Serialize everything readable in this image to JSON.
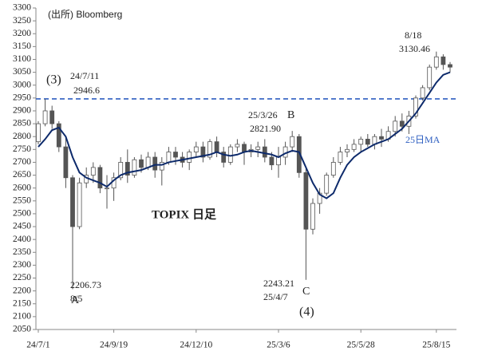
{
  "chart_data": {
    "type": "candlestick",
    "categories": [
      "24/7/1",
      null,
      null,
      null,
      null,
      null,
      null,
      null,
      null,
      null,
      null,
      "24/9/19",
      null,
      null,
      null,
      null,
      null,
      null,
      null,
      null,
      null,
      null,
      null,
      "24/12/10",
      null,
      null,
      null,
      null,
      null,
      null,
      null,
      null,
      null,
      null,
      null,
      "25/3/6",
      null,
      null,
      null,
      null,
      null,
      null,
      null,
      null,
      null,
      null,
      null,
      "25/5/28",
      null,
      null,
      null,
      null,
      null,
      null,
      null,
      null,
      null,
      null,
      "25/8/15",
      null,
      null
    ],
    "open": [
      2780,
      2850,
      2900,
      2850,
      2760,
      2640,
      2450,
      2620,
      2650,
      2680,
      2600,
      2600,
      2640,
      2700,
      2650,
      2710,
      2680,
      2720,
      2670,
      2700,
      2740,
      2720,
      2700,
      2740,
      2760,
      2720,
      2780,
      2740,
      2700,
      2760,
      2770,
      2740,
      2750,
      2760,
      2720,
      2690,
      2720,
      2760,
      2800,
      2660,
      2440,
      2540,
      2580,
      2650,
      2700,
      2740,
      2750,
      2770,
      2790,
      2770,
      2800,
      2790,
      2820,
      2860,
      2840,
      2880,
      2950,
      2990,
      3070,
      3110,
      3080
    ],
    "high": [
      2860,
      2946.6,
      2920,
      2860,
      2800,
      2650,
      2640,
      2680,
      2700,
      2690,
      2650,
      2660,
      2720,
      2750,
      2720,
      2730,
      2740,
      2740,
      2720,
      2760,
      2760,
      2740,
      2750,
      2780,
      2780,
      2790,
      2800,
      2760,
      2770,
      2790,
      2780,
      2770,
      2780,
      2790,
      2740,
      2760,
      2780,
      2821.9,
      2810,
      2680,
      2560,
      2600,
      2660,
      2720,
      2760,
      2770,
      2790,
      2800,
      2810,
      2810,
      2830,
      2840,
      2880,
      2890,
      2900,
      2960,
      3000,
      3080,
      3130.46,
      3120,
      3090
    ],
    "low": [
      2770,
      2840,
      2830,
      2740,
      2600,
      2206.73,
      2440,
      2600,
      2620,
      2580,
      2520,
      2550,
      2630,
      2620,
      2640,
      2660,
      2670,
      2640,
      2610,
      2690,
      2690,
      2680,
      2670,
      2720,
      2700,
      2710,
      2720,
      2680,
      2690,
      2740,
      2690,
      2720,
      2720,
      2700,
      2670,
      2640,
      2690,
      2740,
      2640,
      2243.21,
      2420,
      2500,
      2570,
      2640,
      2690,
      2720,
      2740,
      2740,
      2760,
      2750,
      2760,
      2780,
      2800,
      2820,
      2810,
      2870,
      2940,
      2980,
      3060,
      3060,
      3050
    ],
    "close": [
      2850,
      2900,
      2850,
      2760,
      2640,
      2450,
      2620,
      2650,
      2680,
      2600,
      2600,
      2640,
      2700,
      2650,
      2710,
      2680,
      2720,
      2670,
      2700,
      2740,
      2720,
      2700,
      2740,
      2760,
      2720,
      2780,
      2740,
      2700,
      2760,
      2770,
      2740,
      2750,
      2760,
      2720,
      2690,
      2720,
      2760,
      2800,
      2660,
      2440,
      2540,
      2580,
      2650,
      2700,
      2740,
      2750,
      2770,
      2790,
      2770,
      2800,
      2790,
      2820,
      2860,
      2840,
      2880,
      2950,
      2990,
      3070,
      3110,
      3080,
      3070
    ],
    "candle_color": "#555555",
    "ma": {
      "color": "#0d2a6b",
      "values": [
        2760,
        2790,
        2825,
        2835,
        2800,
        2720,
        2660,
        2640,
        2630,
        2620,
        2605,
        2630,
        2650,
        2660,
        2665,
        2670,
        2680,
        2690,
        2690,
        2700,
        2705,
        2710,
        2715,
        2720,
        2725,
        2730,
        2740,
        2730,
        2725,
        2730,
        2740,
        2745,
        2740,
        2735,
        2730,
        2720,
        2735,
        2745,
        2740,
        2680,
        2620,
        2575,
        2560,
        2580,
        2640,
        2690,
        2720,
        2740,
        2755,
        2770,
        2780,
        2790,
        2810,
        2830,
        2860,
        2890,
        2930,
        2970,
        3010,
        3040,
        3050
      ]
    },
    "hline": {
      "value": 2946.6,
      "color": "#2e5fc1"
    },
    "ylim": [
      2050,
      3300
    ],
    "yticks": [
      2050,
      2100,
      2150,
      2200,
      2250,
      2300,
      2350,
      2400,
      2450,
      2500,
      2550,
      2600,
      2650,
      2700,
      2750,
      2800,
      2850,
      2900,
      2950,
      3000,
      3050,
      3100,
      3150,
      3200,
      3250,
      3300
    ],
    "annotations": [
      "(出所) Bloomberg",
      "(3)",
      "24/7/11",
      "2946.6",
      "25/3/26",
      "2821.90",
      "B",
      "8/18",
      "3130.46",
      "A",
      "2206.73",
      "8/5",
      "2243.21",
      "25/4/7",
      "C",
      "(4)",
      "TOPIX 日足",
      "25日MA"
    ]
  }
}
